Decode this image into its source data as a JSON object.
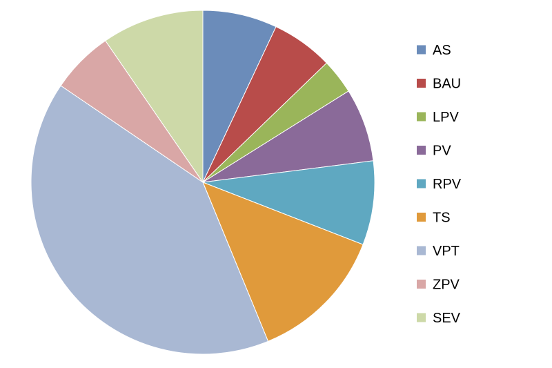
{
  "chart_data": {
    "type": "pie",
    "title": "",
    "legend_position": "right",
    "slices": [
      {
        "label": "AS",
        "value": 7.0,
        "color": "#6b8cba"
      },
      {
        "label": "BAU",
        "value": 5.8,
        "color": "#b84c4a"
      },
      {
        "label": "LPV",
        "value": 3.3,
        "color": "#9ab55a"
      },
      {
        "label": "PV",
        "value": 6.9,
        "color": "#8a6a99"
      },
      {
        "label": "RPV",
        "value": 7.9,
        "color": "#5fa8c1"
      },
      {
        "label": "TS",
        "value": 12.9,
        "color": "#e09a3b"
      },
      {
        "label": "VPT",
        "value": 40.7,
        "color": "#a9b8d3"
      },
      {
        "label": "ZPV",
        "value": 5.9,
        "color": "#d9a7a6"
      },
      {
        "label": "SEV",
        "value": 9.6,
        "color": "#cdd9a8"
      }
    ]
  }
}
